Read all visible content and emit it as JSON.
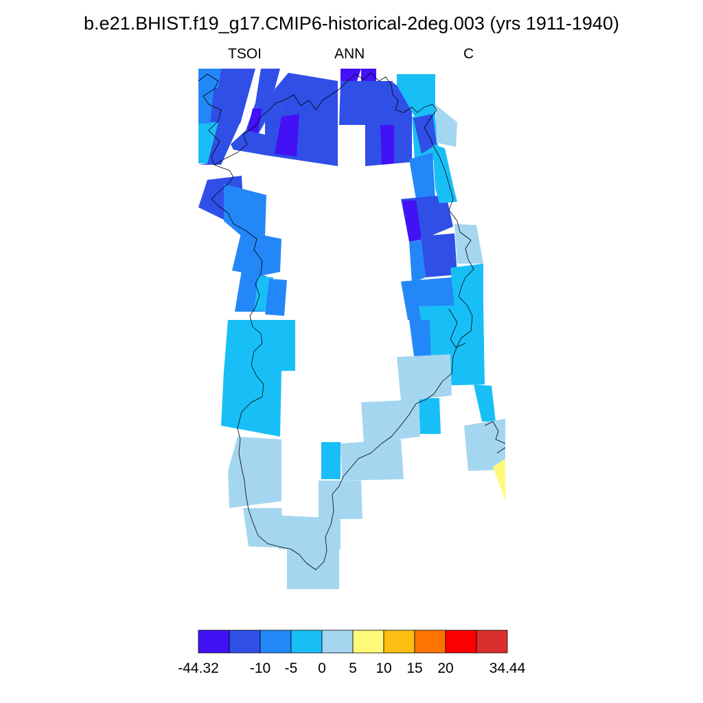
{
  "title": "b.e21.BHIST.f19_g17.CMIP6-historical-2deg.003 (yrs 1911-1940)",
  "subtitle": {
    "left": "TSOI",
    "center": "ANN",
    "right": "C"
  },
  "colorbar": {
    "colors": [
      "#4311f5",
      "#2f4fe7",
      "#2387f7",
      "#18bff6",
      "#a5d6f0",
      "#fff97a",
      "#fdbf12",
      "#fd7402",
      "#fb0000",
      "#d92f2e"
    ],
    "labels": [
      "-44.32",
      "-10",
      "-5",
      "0",
      "5",
      "10",
      "15",
      "20",
      "34.44"
    ]
  }
}
